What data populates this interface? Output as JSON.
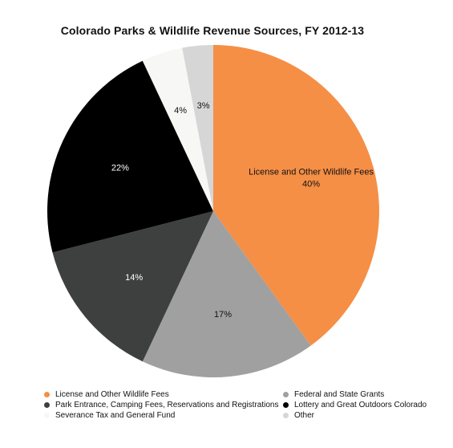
{
  "chart_data": {
    "type": "pie",
    "title": "Colorado Parks & Wildlife Revenue Sources, FY 2012-13",
    "slices": [
      {
        "label": "License and Other Wildlife Fees",
        "value": 40,
        "display": "40%",
        "color": "#f58f46",
        "text_color": "#111111",
        "show_label": true
      },
      {
        "label": "Federal and State Grants",
        "value": 17,
        "display": "17%",
        "color": "#a0a0a0",
        "text_color": "#111111",
        "show_label": false
      },
      {
        "label": "Park Entrance, Camping Fees, Reservations and Registrations",
        "value": 14,
        "display": "14%",
        "color": "#3d403e",
        "text_color": "#ffffff",
        "show_label": false
      },
      {
        "label": "Lottery and Great Outdoors Colorado",
        "value": 22,
        "display": "22%",
        "color": "#000000",
        "text_color": "#ffffff",
        "show_label": false
      },
      {
        "label": "Severance Tax and General Fund",
        "value": 4,
        "display": "4%",
        "color": "#f7f7f5",
        "text_color": "#111111",
        "show_label": false
      },
      {
        "label": "Other",
        "value": 3,
        "display": "3%",
        "color": "#d6d6d6",
        "text_color": "#111111",
        "show_label": false
      }
    ],
    "legend_position": "bottom",
    "legend_order": [
      0,
      1,
      2,
      3,
      4,
      5
    ]
  }
}
